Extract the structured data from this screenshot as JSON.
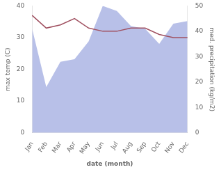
{
  "chart_data": {
    "type": "line",
    "xlabel": "date (month)",
    "ylabel": "max temp (C)",
    "y2label": "med. precipitation (kg/m2)",
    "categories": [
      "Jan",
      "Feb",
      "Mar",
      "Apr",
      "May",
      "Jun",
      "Jul",
      "Aug",
      "Sep",
      "Oct",
      "Nov",
      "Dec"
    ],
    "series": [
      {
        "type": "area",
        "axis": "y2",
        "color": "#b8c0e8",
        "values": [
          41,
          18,
          28,
          29,
          36,
          50,
          48,
          42,
          41,
          35,
          43,
          44
        ]
      },
      {
        "type": "line",
        "color": "#a05060",
        "values": [
          37,
          33,
          34,
          36,
          33,
          32,
          32,
          33,
          33,
          31,
          30,
          30
        ]
      }
    ],
    "ylim": [
      0,
      40
    ],
    "yticks": [
      0,
      10,
      20,
      30,
      40
    ],
    "y2lim": [
      0,
      50
    ],
    "y2ticks": [
      0,
      10,
      20,
      30,
      40,
      50
    ],
    "grid": false
  }
}
